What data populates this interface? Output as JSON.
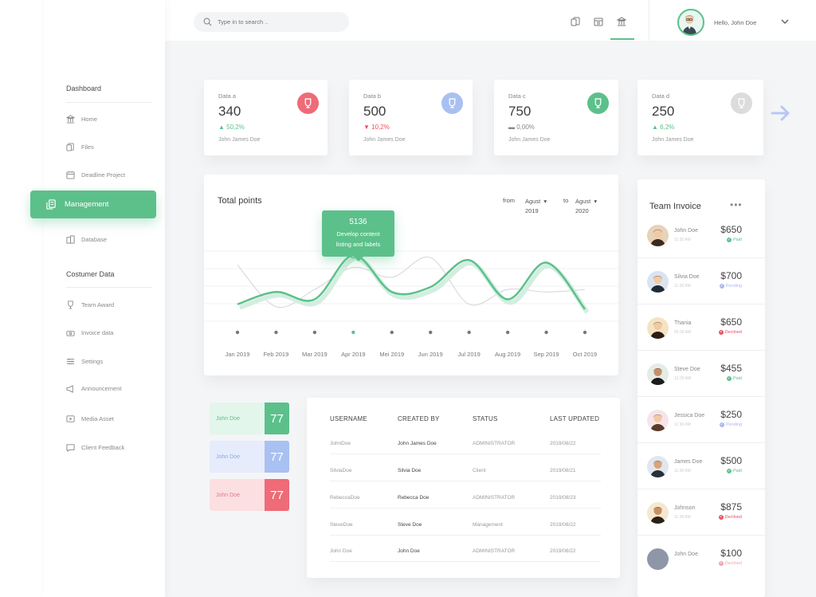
{
  "search": {
    "placeholder": "Type in to search .."
  },
  "header": {
    "greeting": "Hello, John Doe"
  },
  "sidebar": {
    "section1": "Dashboard",
    "items1": [
      {
        "label": "Home"
      },
      {
        "label": "Files"
      },
      {
        "label": "Deadline Project"
      }
    ],
    "active": "Management",
    "items2": [
      {
        "label": "Database"
      }
    ],
    "section2": "Costumer Data",
    "items3": [
      {
        "label": "Team Award"
      },
      {
        "label": "Invoice data"
      },
      {
        "label": "Settings"
      },
      {
        "label": "Announcement"
      },
      {
        "label": "Media Asset"
      },
      {
        "label": "Client Feedback"
      }
    ]
  },
  "stats": [
    {
      "label": "Data a",
      "value": "340",
      "change": "50,2%",
      "trend": "up",
      "person": "John James Doe",
      "color": "#ee6b77"
    },
    {
      "label": "Data b",
      "value": "500",
      "change": "10,2%",
      "trend": "down",
      "person": "John James Doe",
      "color": "#a9c0f2"
    },
    {
      "label": "Data c",
      "value": "750",
      "change": "0,00%",
      "trend": "flat",
      "person": "John James Doe",
      "color": "#5cc08b"
    },
    {
      "label": "Data d",
      "value": "250",
      "change": "6,2%",
      "trend": "up",
      "person": "John James Doe",
      "color": "#dcdcdc"
    }
  ],
  "chart": {
    "title": "Total points",
    "from_label": "from",
    "from_value": [
      "Agust",
      "2019"
    ],
    "to_label": "to",
    "to_value": [
      "Agust",
      "2020"
    ],
    "tooltip": {
      "value": "5136",
      "text1": "Develop content",
      "text2": "listing and labels"
    }
  },
  "chart_data": {
    "type": "line",
    "x": [
      "Jan 2019",
      "Feb 2019",
      "Mar 2019",
      "Apr 2019",
      "Mei 2019",
      "Jun 2019",
      "Jul 2019",
      "Aug 2019",
      "Sep 2019",
      "Oct 2019"
    ],
    "series": [
      {
        "values": [
          20,
          45,
          30,
          120,
          45,
          55,
          110,
          30,
          105,
          10
        ]
      },
      {
        "values": [
          100,
          15,
          50,
          95,
          75,
          115,
          20,
          50,
          45,
          50
        ]
      }
    ],
    "highlight": {
      "x": "Apr 2019",
      "value": "5136"
    },
    "colors": {
      "primary": "#5cc08b",
      "secondary": "#d4d4d4"
    },
    "grid": true,
    "ylim": [
      0,
      130
    ]
  },
  "mini_cards": [
    {
      "name": "John Doe",
      "value": "77",
      "bg": "#e3f6eb",
      "accent": "#5cc08b",
      "text": "#5cc08b"
    },
    {
      "name": "John Doe",
      "value": "77",
      "bg": "#e6ecfb",
      "accent": "#a9c0f2",
      "text": "#8ea7e6"
    },
    {
      "name": "John Doe",
      "value": "77",
      "bg": "#fbdfe1",
      "accent": "#ee6b77",
      "text": "#e27a84"
    }
  ],
  "table": {
    "headers": [
      "USERNAME",
      "CREATED BY",
      "STATUS",
      "LAST UPDATED"
    ],
    "rows": [
      [
        "JohnDoe",
        "John James Doe",
        "ADMINISTRATOR",
        "2019/08/22"
      ],
      [
        "SilviaDoe",
        "Silvia Doe",
        "Client",
        "2019/08/21"
      ],
      [
        "RebeccaDoe",
        "Rebecca Doe",
        "ADMINISTRATOR",
        "2019/08/23"
      ],
      [
        "SteveDoe",
        "Steve Doe",
        "Management",
        "2019/08/22"
      ],
      [
        "John Doe",
        "John Doe",
        "ADMINISTRATOR",
        "2019/08/22"
      ]
    ]
  },
  "invoice": {
    "title": "Team Invoice",
    "rows": [
      {
        "name": "John Doe",
        "time": "11:30 AM",
        "amount": "$650",
        "status": "Paid",
        "status_color": "#5cc08b"
      },
      {
        "name": "Silvia Doe",
        "time": "11:30 AM",
        "amount": "$700",
        "status": "Pending",
        "status_color": "#a9b8ef"
      },
      {
        "name": "Thania",
        "time": "06:30 AM",
        "amount": "$650",
        "status": "Declined",
        "status_color": "#ee4f5f"
      },
      {
        "name": "Steve Doe",
        "time": "12:30 AM",
        "amount": "$455",
        "status": "Paid",
        "status_color": "#5cc08b"
      },
      {
        "name": "Jessica Doe",
        "time": "11:30 AM",
        "amount": "$250",
        "status": "Pending",
        "status_color": "#a9b8ef"
      },
      {
        "name": "James Doe",
        "time": "11:30 AM",
        "amount": "$500",
        "status": "Paid",
        "status_color": "#5cc08b"
      },
      {
        "name": "Johnson",
        "time": "11:30 AM",
        "amount": "$875",
        "status": "Declined",
        "status_color": "#ee4f5f"
      },
      {
        "name": "John Doe",
        "time": "",
        "amount": "$100",
        "status": "Declined",
        "status_color": "#f7a3ab"
      }
    ]
  }
}
